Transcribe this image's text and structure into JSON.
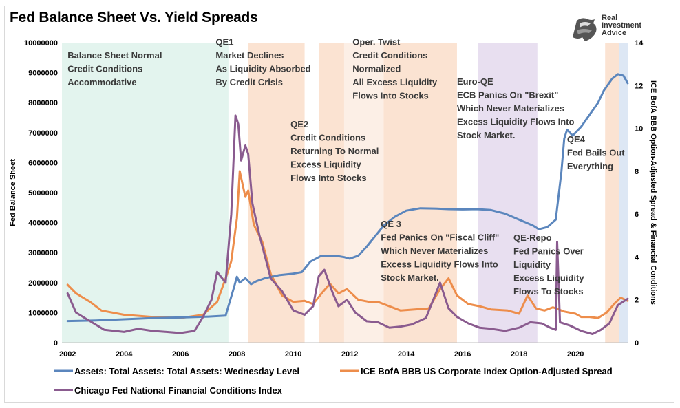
{
  "title": "Fed Balance Sheet Vs. Yield Spreads",
  "logo": {
    "icon": "eagle-icon",
    "lines": [
      "Real",
      "Investment",
      "Advice"
    ]
  },
  "chart_data": {
    "type": "line",
    "x_range": [
      2001.8,
      2021.85
    ],
    "x_ticks": [
      2002,
      2004,
      2006,
      2008,
      2010,
      2012,
      2014,
      2016,
      2018,
      2020
    ],
    "y_left": {
      "label": "Fed Balance Sheet",
      "range": [
        0,
        10000000
      ],
      "ticks": [
        0,
        1000000,
        2000000,
        3000000,
        4000000,
        5000000,
        6000000,
        7000000,
        8000000,
        9000000,
        10000000
      ],
      "tick_labels": [
        "0",
        "1000000",
        "2000000",
        "3000000",
        "4000000",
        "5000000",
        "6000000",
        "7000000",
        "8000000",
        "9000000",
        "10000000"
      ]
    },
    "y_right": {
      "label": "ICE BofA BBB Option-Adjusted Spread & Financial Conditions",
      "range": [
        0,
        14
      ],
      "ticks": [
        0,
        2,
        4,
        6,
        8,
        10,
        12,
        14
      ],
      "tick_labels": [
        "0",
        "2",
        "4",
        "6",
        "8",
        "10",
        "12",
        "14"
      ]
    },
    "shaded_regions": [
      {
        "start": 2001.8,
        "end": 2007.7,
        "color": "#e3f4ee"
      },
      {
        "start": 2008.4,
        "end": 2010.4,
        "color": "#fbe3d2"
      },
      {
        "start": 2010.9,
        "end": 2011.8,
        "color": "#fbe3d2"
      },
      {
        "start": 2011.8,
        "end": 2013.2,
        "color": "#fcefe6"
      },
      {
        "start": 2013.2,
        "end": 2015.8,
        "color": "#fbe3d2"
      },
      {
        "start": 2016.55,
        "end": 2018.65,
        "color": "#e8dff0"
      },
      {
        "start": 2021.05,
        "end": 2021.55,
        "color": "#fbe3d2"
      },
      {
        "start": 2021.55,
        "end": 2021.85,
        "color": "#dde7f4"
      }
    ],
    "annotations": [
      {
        "lines": [
          "Balance Sheet Normal",
          "Credit Conditions",
          "Accommodative"
        ],
        "x": 2002.0,
        "y_top": 9750000
      },
      {
        "lines": [
          "QE1",
          "Market Declines",
          "As Liquidity Absorbed",
          "By Credit Crisis"
        ],
        "x": 2007.25,
        "y_top": 10200000
      },
      {
        "lines": [
          "QE2",
          "Credit Conditions",
          "Returning To Normal",
          "Excess Liquidity",
          "Flows Into Stocks"
        ],
        "x": 2009.9,
        "y_top": 7450000
      },
      {
        "lines": [
          "Oper. Twist",
          "Credit Conditions",
          "Normalized",
          "All Excess Liquidity",
          "Flows Into Stocks"
        ],
        "x": 2012.1,
        "y_top": 10200000
      },
      {
        "lines": [
          "Euro-QE",
          "ECB Panics On \"Brexit\"",
          "Which Never Materializes",
          "Excess Liquidity Flows Into",
          "Stock Market."
        ],
        "x": 2015.8,
        "y_top": 8880000
      },
      {
        "lines": [
          "QE4",
          "Fed Bails Out",
          "Everything"
        ],
        "x": 2019.7,
        "y_top": 6950000
      },
      {
        "lines": [
          "QE 3",
          "Fed Panics On \"Fiscal Cliff\"",
          "Which Never Materializes",
          "Excess Liquidity Flows Into",
          "Stock Market."
        ],
        "x": 2013.1,
        "y_top": 4130000
      },
      {
        "lines": [
          "QE-Repo",
          "Fed Panics Over",
          "Liquidity",
          "Excess Liquidity",
          "Flows To Stocks"
        ],
        "x": 2017.8,
        "y_top": 3670000
      }
    ],
    "series": [
      {
        "name": "Assets: Total Assets: Total Assets: Wednesday Level",
        "axis": "left",
        "color": "#5b86bd",
        "x": [
          2002.0,
          2003.0,
          2004.0,
          2005.0,
          2006.0,
          2007.0,
          2007.6,
          2007.9,
          2008.0,
          2008.1,
          2008.3,
          2008.5,
          2008.7,
          2009.0,
          2009.5,
          2010.0,
          2010.3,
          2010.6,
          2011.0,
          2011.5,
          2011.8,
          2012.0,
          2012.3,
          2012.6,
          2012.9,
          2013.2,
          2013.6,
          2014.0,
          2014.5,
          2015.0,
          2015.5,
          2016.0,
          2016.5,
          2017.0,
          2017.5,
          2018.0,
          2018.5,
          2018.7,
          2019.0,
          2019.3,
          2019.5,
          2019.6,
          2019.7,
          2019.9,
          2020.2,
          2020.5,
          2020.8,
          2021.0,
          2021.3,
          2021.5,
          2021.7,
          2021.85
        ],
        "y": [
          720000,
          740000,
          780000,
          820000,
          840000,
          870000,
          900000,
          1850000,
          2200000,
          2000000,
          2150000,
          1950000,
          2050000,
          2150000,
          2250000,
          2300000,
          2350000,
          2700000,
          2900000,
          2900000,
          2850000,
          2800000,
          2900000,
          3200000,
          3550000,
          3900000,
          4200000,
          4400000,
          4480000,
          4470000,
          4450000,
          4440000,
          4450000,
          4420000,
          4300000,
          4100000,
          3900000,
          3780000,
          3850000,
          4100000,
          5700000,
          6800000,
          7100000,
          6900000,
          7200000,
          7600000,
          8000000,
          8400000,
          8800000,
          8950000,
          8900000,
          8650000
        ]
      },
      {
        "name": "ICE BofA BBB US Corporate Index Option-Adjusted Spread",
        "axis": "right",
        "color": "#ed8d4b",
        "x": [
          2002.0,
          2002.3,
          2002.8,
          2003.2,
          2004.0,
          2005.0,
          2006.0,
          2006.8,
          2007.3,
          2007.6,
          2007.8,
          2008.0,
          2008.1,
          2008.3,
          2008.4,
          2008.6,
          2008.9,
          2009.2,
          2009.6,
          2010.0,
          2010.4,
          2010.7,
          2011.0,
          2011.3,
          2011.6,
          2011.9,
          2012.3,
          2012.7,
          2013.0,
          2013.3,
          2013.8,
          2014.3,
          2014.8,
          2015.2,
          2015.5,
          2015.8,
          2016.2,
          2016.6,
          2017.0,
          2017.6,
          2018.0,
          2018.3,
          2018.6,
          2018.9,
          2019.2,
          2019.6,
          2020.0,
          2020.2,
          2020.5,
          2020.8,
          2021.1,
          2021.4,
          2021.6,
          2021.85
        ],
        "y": [
          2.7,
          2.3,
          1.9,
          1.5,
          1.3,
          1.2,
          1.15,
          1.3,
          1.9,
          3.0,
          3.8,
          5.8,
          8.0,
          6.8,
          7.1,
          5.5,
          4.7,
          3.2,
          2.2,
          1.9,
          1.95,
          1.8,
          2.3,
          2.75,
          2.3,
          2.5,
          2.0,
          1.9,
          1.9,
          1.75,
          1.5,
          1.55,
          1.6,
          2.5,
          3.0,
          2.2,
          1.8,
          1.7,
          1.55,
          1.5,
          1.35,
          2.2,
          1.6,
          1.5,
          1.65,
          1.45,
          1.35,
          1.2,
          1.2,
          1.15,
          1.4,
          1.85,
          2.1,
          1.95
        ]
      },
      {
        "name": "Chicago Fed National Financial Conditions Index",
        "axis": "right",
        "color": "#8a5b8f",
        "x": [
          2002.0,
          2002.3,
          2002.8,
          2003.3,
          2004.0,
          2004.5,
          2005.0,
          2005.5,
          2006.0,
          2006.5,
          2006.8,
          2007.1,
          2007.3,
          2007.6,
          2007.8,
          2007.95,
          2008.05,
          2008.15,
          2008.3,
          2008.4,
          2008.55,
          2008.8,
          2009.2,
          2009.6,
          2010.0,
          2010.4,
          2010.7,
          2010.9,
          2011.1,
          2011.4,
          2011.6,
          2011.9,
          2012.2,
          2012.6,
          2013.0,
          2013.4,
          2013.8,
          2014.2,
          2014.7,
          2015.2,
          2015.5,
          2015.8,
          2016.2,
          2016.6,
          2017.0,
          2017.5,
          2018.0,
          2018.4,
          2018.8,
          2019.1,
          2019.3,
          2019.35,
          2019.45,
          2019.8,
          2020.2,
          2020.6,
          2020.9,
          2021.2,
          2021.5,
          2021.85
        ],
        "y": [
          2.3,
          1.4,
          1.0,
          0.6,
          0.5,
          0.65,
          0.55,
          0.5,
          0.45,
          0.55,
          1.2,
          2.0,
          3.3,
          2.8,
          6.0,
          10.6,
          10.2,
          8.5,
          9.2,
          8.8,
          6.5,
          5.0,
          3.0,
          2.4,
          1.5,
          1.3,
          1.7,
          3.1,
          3.4,
          2.3,
          1.7,
          2.0,
          1.4,
          1.0,
          0.95,
          0.7,
          0.75,
          0.85,
          1.15,
          2.8,
          1.6,
          1.2,
          0.9,
          0.7,
          0.65,
          0.55,
          0.7,
          0.95,
          0.9,
          0.7,
          0.6,
          4.7,
          0.95,
          0.8,
          0.55,
          0.4,
          0.6,
          0.9,
          1.75,
          2.05
        ]
      }
    ],
    "legend": "bottom"
  }
}
